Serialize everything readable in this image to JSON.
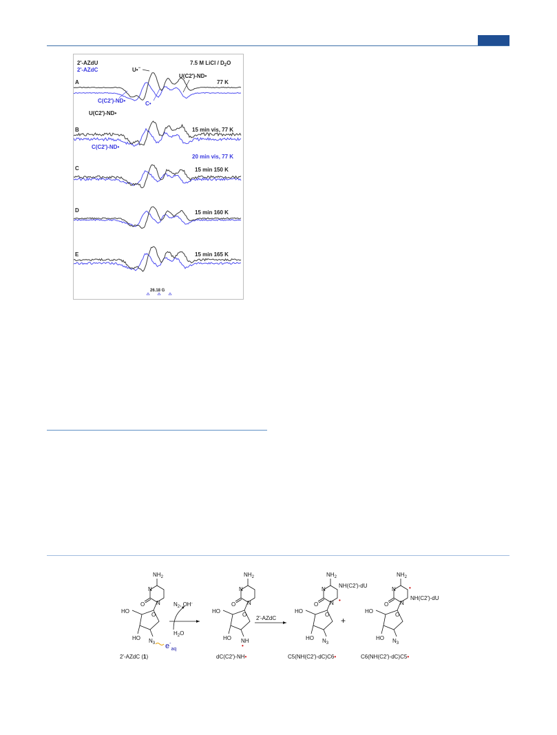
{
  "figure": {
    "legend": {
      "series1": "2'-AZdU",
      "series2": "2'-AZdC"
    },
    "solvent": "7.5 M LiCl / D",
    "solvent_sub": "2",
    "solvent_tail": "O",
    "colors": {
      "azdu": "#3a3a3a",
      "azdc": "#4b4bf0",
      "accent_blue": "#3535e0"
    },
    "panels": [
      {
        "letter": "A",
        "condition": "77 K"
      },
      {
        "letter": "B",
        "condition": "15 min vis, 77 K",
        "condition2": "20 min vis, 77 K"
      },
      {
        "letter": "C",
        "condition": "15 min 150 K"
      },
      {
        "letter": "D",
        "condition": "15 min 160 K"
      },
      {
        "letter": "E",
        "condition": "15 min 165 K"
      }
    ],
    "annotations": {
      "u_anion": "U•",
      "u_anion_sup": "−",
      "u_c2_nd_a": "U(C2')-ND•",
      "c_c2_nd_a": "C(C2')-ND•",
      "c_radical": "C•",
      "u_c2_nd_b": "U(C2')-ND•",
      "c_c2_nd_b": "C(C2')-ND•"
    },
    "scale_bar": "26.18 G"
  },
  "scheme": {
    "compound1": {
      "label": "2'-AZdC (",
      "num": "1",
      "close": ")"
    },
    "reagent_top": {
      "n2": "N",
      "n2_sub": "2",
      "oh": ", OH",
      "oh_sup": "-"
    },
    "reagent_bottom": {
      "h": "H",
      "sub": "2",
      "o": "O"
    },
    "electron": {
      "e": "e",
      "sup": "-",
      "sub": "aq"
    },
    "intermediate": "dC(C2')-NH",
    "step2_reagent": "2'-AZdC",
    "plus": "+",
    "product1": "C5(NH(C2')-dC)C6",
    "product2": "C6(NH(C2')-dC)C5",
    "atoms": {
      "nh2": "NH",
      "nh2_sub": "2",
      "n": "N",
      "o": "O",
      "ho": "HO",
      "n3": "N",
      "n3_sub": "3",
      "nh": "NH",
      "nh_c2_du": "NH(C2')-dU"
    },
    "radical_dot": "•"
  }
}
